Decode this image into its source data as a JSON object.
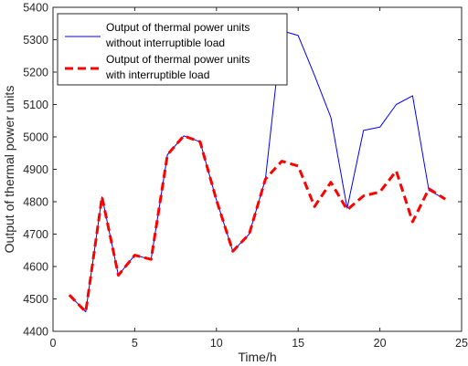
{
  "chart_data": {
    "type": "line",
    "xlabel": "Time/h",
    "ylabel": "Output of thermal power units",
    "xlim": [
      0,
      25
    ],
    "ylim": [
      4400,
      5400
    ],
    "xticks": [
      0,
      5,
      10,
      15,
      20,
      25
    ],
    "yticks": [
      4400,
      4500,
      4600,
      4700,
      4800,
      4900,
      5000,
      5100,
      5200,
      5300,
      5400
    ],
    "grid": false,
    "legend_position": "top-left",
    "x": [
      1,
      2,
      3,
      4,
      5,
      6,
      7,
      8,
      9,
      10,
      11,
      12,
      13,
      14,
      15,
      16,
      17,
      18,
      19,
      20,
      21,
      22,
      23,
      24
    ],
    "series": [
      {
        "name": "Output of thermal power units without interruptible load",
        "legend_lines": [
          "Output of thermal power units",
          "without interruptible load"
        ],
        "color": "#0000ff",
        "style": "solid",
        "values": [
          4512,
          4460,
          4815,
          4573,
          4635,
          4622,
          4945,
          5003,
          4985,
          4805,
          4647,
          4700,
          4870,
          5328,
          5313,
          5190,
          5060,
          4780,
          5020,
          5030,
          5100,
          5127,
          4835,
          4808
        ]
      },
      {
        "name": "Output of thermal power units with interruptible load",
        "legend_lines": [
          "Output of thermal power units",
          "with interruptible load"
        ],
        "color": "#ff0000",
        "style": "dashed",
        "values": [
          4512,
          4460,
          4815,
          4573,
          4635,
          4622,
          4945,
          5003,
          4985,
          4805,
          4647,
          4700,
          4870,
          4925,
          4910,
          4785,
          4860,
          4775,
          4818,
          4830,
          4895,
          4738,
          4840,
          4808
        ]
      }
    ]
  }
}
